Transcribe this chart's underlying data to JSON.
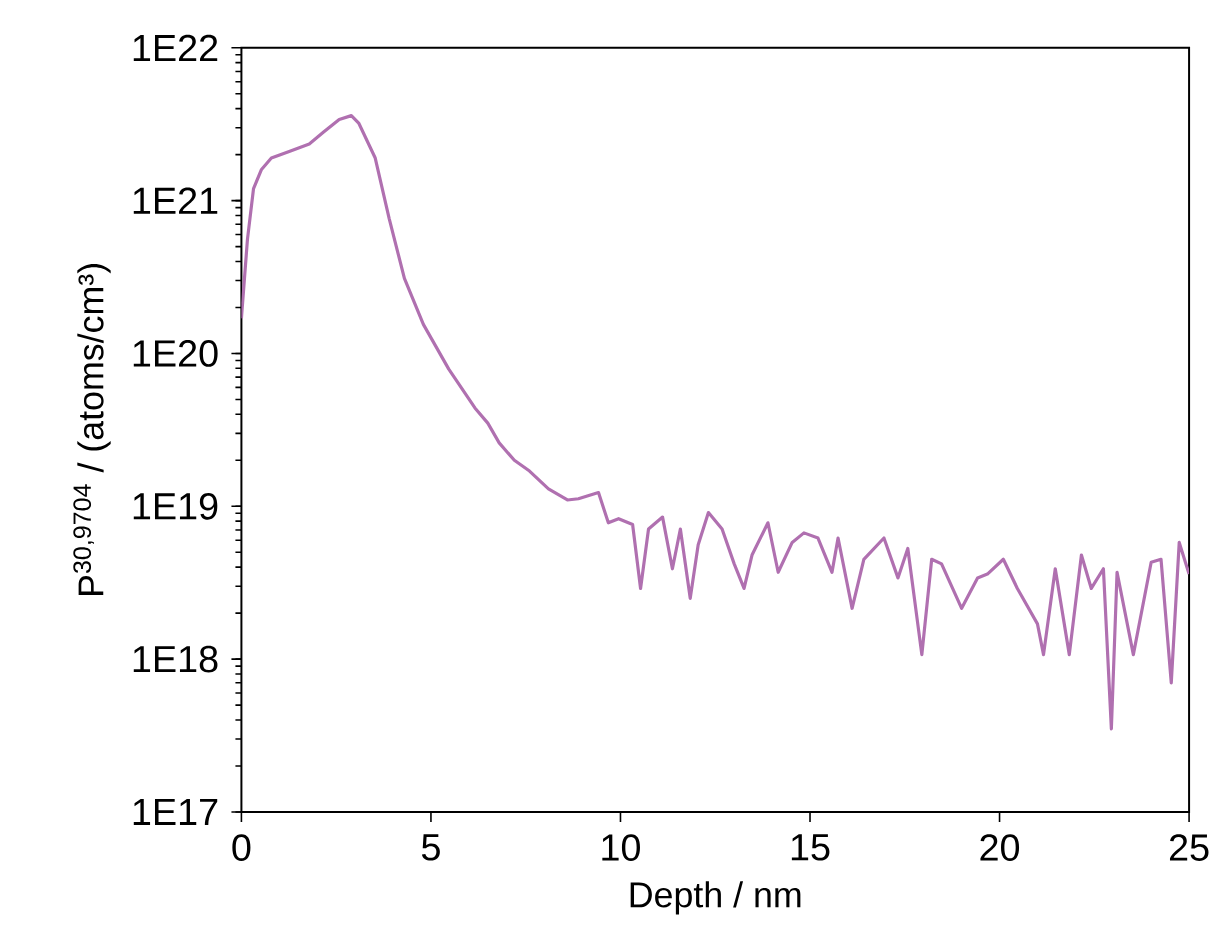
{
  "chart_data": {
    "type": "line",
    "xlabel": "Depth / nm",
    "ylabel": "P$^{30,9704}$ / (atoms/cm³)",
    "log": "y",
    "grid": false,
    "marker": "none",
    "line_style": "solid",
    "xlim": [
      0,
      25
    ],
    "ylim": [
      1e+17,
      1e+22
    ],
    "xticks": [
      0,
      5,
      10,
      15,
      20,
      25
    ],
    "yticks": [
      {
        "value": 1e+17,
        "label": "1E17"
      },
      {
        "value": 1e+18,
        "label": "1E18"
      },
      {
        "value": 1e+19,
        "label": "1E19"
      },
      {
        "value": 1e+20,
        "label": "1E20"
      },
      {
        "value": 1e+21,
        "label": "1E21"
      },
      {
        "value": 1e+22,
        "label": "1E22"
      }
    ],
    "series": [
      {
        "color": "#b070b0",
        "x": [
          0,
          0.16,
          0.32,
          0.53,
          0.79,
          1.26,
          1.79,
          2.16,
          2.58,
          2.9,
          3.1,
          3.53,
          3.9,
          4.3,
          4.8,
          5.47,
          6.16,
          6.5,
          6.8,
          7.2,
          7.6,
          8.1,
          8.6,
          8.89,
          9.42,
          9.68,
          9.95,
          10.32,
          10.53,
          10.74,
          11.11,
          11.37,
          11.58,
          11.84,
          12.05,
          12.32,
          12.68,
          13.0,
          13.26,
          13.47,
          13.89,
          14.16,
          14.53,
          14.84,
          15.21,
          15.58,
          15.74,
          16.11,
          16.42,
          16.95,
          17.32,
          17.58,
          17.95,
          18.21,
          18.47,
          19.0,
          19.42,
          19.68,
          20.1,
          20.47,
          21.0,
          21.16,
          21.47,
          21.84,
          22.16,
          22.42,
          22.74,
          22.95,
          23.1,
          23.53,
          24.0,
          24.26,
          24.53,
          24.74,
          25.0
        ],
        "values": [
          1.7e+20,
          5.6e+20,
          1.2e+21,
          1.6e+21,
          1.9e+21,
          2.1e+21,
          2.35e+21,
          2.8e+21,
          3.4e+21,
          3.6e+21,
          3.2e+21,
          1.9e+21,
          7.6e+20,
          3.1e+20,
          1.55e+20,
          7.9e+19,
          4.4e+19,
          3.5e+19,
          2.6e+19,
          2e+19,
          1.7e+19,
          1.3e+19,
          1.1e+19,
          1.12e+19,
          1.23e+19,
          7.8e+18,
          8.3e+18,
          7.6e+18,
          2.9e+18,
          7.1e+18,
          8.5e+18,
          3.9e+18,
          7.1e+18,
          2.5e+18,
          5.6e+18,
          9.1e+18,
          7.1e+18,
          4.2e+18,
          2.9e+18,
          4.8e+18,
          7.8e+18,
          3.7e+18,
          5.8e+18,
          6.7e+18,
          6.2e+18,
          3.7e+18,
          6.2e+18,
          2.15e+18,
          4.5e+18,
          6.2e+18,
          3.4e+18,
          5.3e+18,
          1.07e+18,
          4.5e+18,
          4.2e+18,
          2.15e+18,
          3.4e+18,
          3.6e+18,
          4.5e+18,
          2.9e+18,
          1.7e+18,
          1.07e+18,
          3.9e+18,
          1.07e+18,
          4.8e+18,
          2.9e+18,
          3.9e+18,
          3.5e+17,
          3.7e+18,
          1.07e+18,
          4.3e+18,
          4.5e+18,
          7e+17,
          5.8e+18,
          3.6e+18
        ]
      }
    ]
  }
}
